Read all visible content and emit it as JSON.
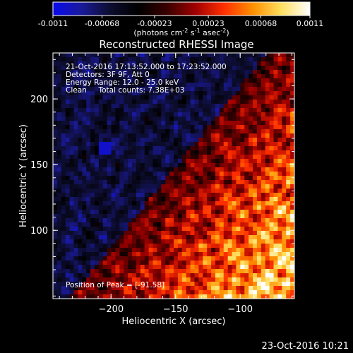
{
  "chart_data": {
    "type": "heatmap",
    "title": "Reconstructed RHESSI Image",
    "xlabel": "Heliocentric X (arcsec)",
    "ylabel": "Heliocentric Y (arcsec)",
    "xlim": [
      -245,
      -58
    ],
    "ylim": [
      48,
      235
    ],
    "x_ticks": [
      -200,
      -150,
      -100
    ],
    "y_ticks": [
      100,
      150,
      200
    ],
    "colorbar": {
      "ticks": [
        "-0.0011",
        "-0.00068",
        "-0.00023",
        "0.00023",
        "0.00068",
        "0.0011"
      ],
      "range": [
        -0.0011,
        0.0011
      ],
      "unit_prefix": "(photons cm",
      "unit_exp1": "-2",
      "unit_mid": " s",
      "unit_exp2": "-1",
      "unit_mid2": " asec",
      "unit_exp3": "-2",
      "unit_suffix": ")",
      "stops": [
        "#0a0af0",
        "#1a1a9a",
        "#0d0d30",
        "#000000",
        "#3a0000",
        "#a00000",
        "#ff3000",
        "#ff9000",
        "#ffe060",
        "#ffffff"
      ]
    },
    "annotations": [
      "21-Oct-2016 17:13:52.000 to 17:23:52.000",
      "Detectors: 3F 9F, Att 0",
      "Energy Range: 12.0 - 25.0 keV",
      "Clean     Total counts: 7.38E+03"
    ],
    "peak_text": "Position of Peak = [-91.58]",
    "grid": false
  },
  "footer": {
    "timestamp": "23-Oct-2016 10:21"
  }
}
